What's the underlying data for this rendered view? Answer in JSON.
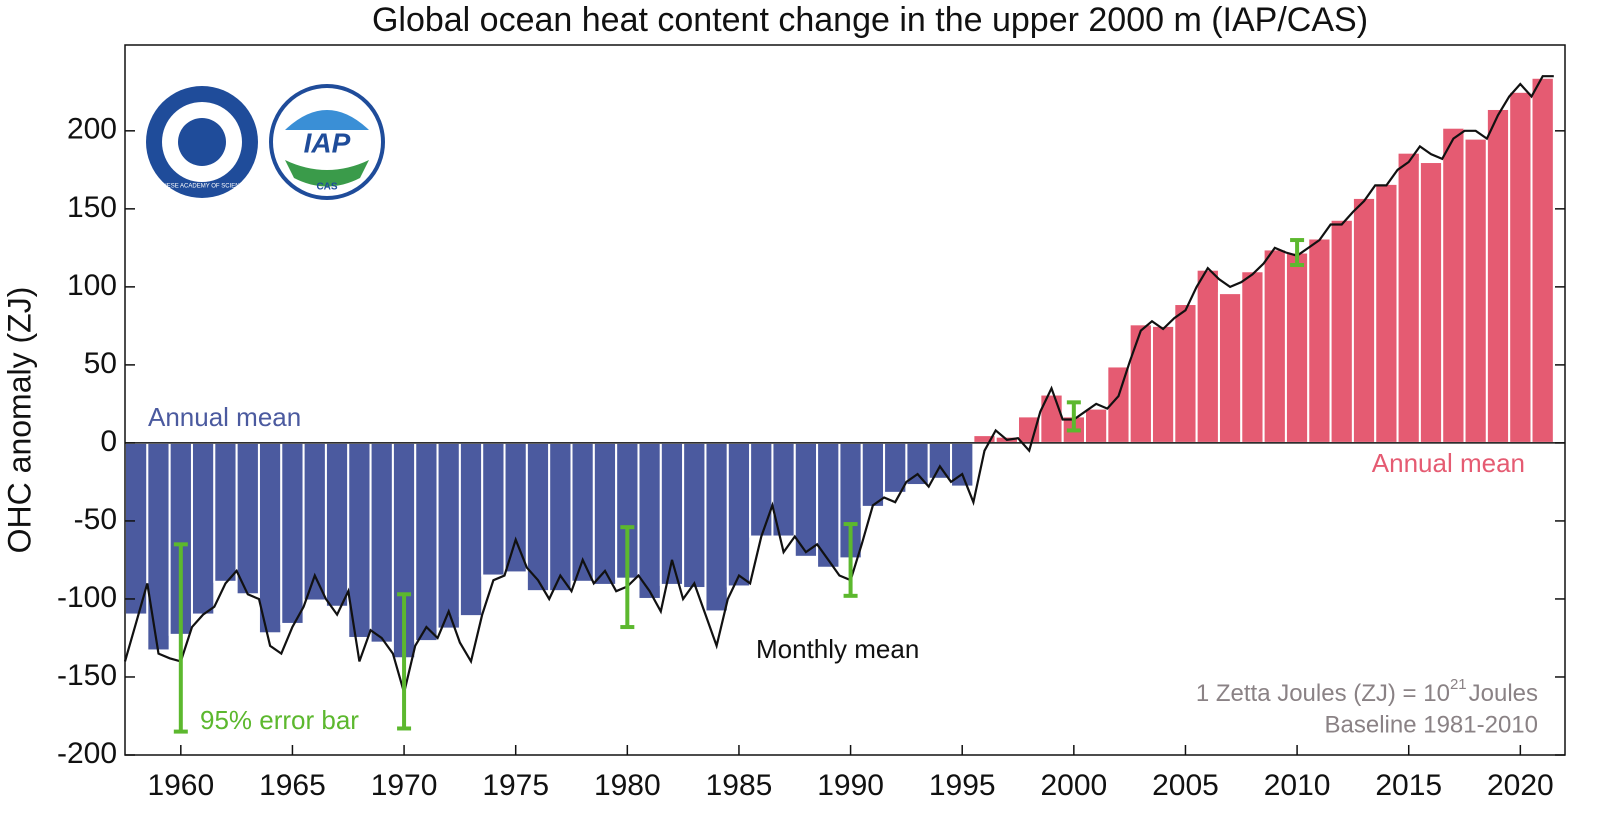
{
  "chart_data": {
    "type": "bar",
    "title": "Global ocean heat content change in the upper 2000 m (IAP/CAS)",
    "y_label": "OHC anomaly (ZJ)",
    "xlim": [
      1957.5,
      2022
    ],
    "ylim": [
      -200,
      255
    ],
    "xticks": [
      1960,
      1965,
      1970,
      1975,
      1980,
      1985,
      1990,
      1995,
      2000,
      2005,
      2010,
      2015,
      2020
    ],
    "yticks": [
      -200,
      -150,
      -100,
      -50,
      0,
      50,
      100,
      150,
      200
    ],
    "grid": false,
    "annual": {
      "name": "Annual mean",
      "negative_color": "#4b5a9f",
      "positive_color": "#e55b72",
      "x": [
        1958,
        1959,
        1960,
        1961,
        1962,
        1963,
        1964,
        1965,
        1966,
        1967,
        1968,
        1969,
        1970,
        1971,
        1972,
        1973,
        1974,
        1975,
        1976,
        1977,
        1978,
        1979,
        1980,
        1981,
        1982,
        1983,
        1984,
        1985,
        1986,
        1987,
        1988,
        1989,
        1990,
        1991,
        1992,
        1993,
        1994,
        1995,
        1996,
        1997,
        1998,
        1999,
        2000,
        2001,
        2002,
        2003,
        2004,
        2005,
        2006,
        2007,
        2008,
        2009,
        2010,
        2011,
        2012,
        2013,
        2014,
        2015,
        2016,
        2017,
        2018,
        2019,
        2020,
        2021
      ],
      "values": [
        -110,
        -133,
        -123,
        -110,
        -89,
        -97,
        -122,
        -116,
        -101,
        -105,
        -125,
        -128,
        -138,
        -127,
        -119,
        -111,
        -85,
        -83,
        -95,
        -95,
        -89,
        -91,
        -87,
        -100,
        -91,
        -93,
        -108,
        -92,
        -60,
        -60,
        -73,
        -80,
        -74,
        -41,
        -32,
        -27,
        -23,
        -28,
        5,
        4,
        17,
        31,
        17,
        22,
        49,
        76,
        75,
        89,
        111,
        96,
        110,
        124,
        122,
        131,
        143,
        157,
        166,
        186,
        180,
        202,
        195,
        214,
        225,
        234
      ]
    },
    "monthly": {
      "name": "Monthly mean",
      "color": "#111111",
      "x": [
        1957.5,
        1958,
        1958.5,
        1959,
        1959.5,
        1960,
        1960.5,
        1961,
        1961.5,
        1962,
        1962.5,
        1963,
        1963.5,
        1964,
        1964.5,
        1965,
        1965.5,
        1966,
        1966.5,
        1967,
        1967.5,
        1968,
        1968.5,
        1969,
        1969.5,
        1970,
        1970.5,
        1971,
        1971.5,
        1972,
        1972.5,
        1973,
        1973.5,
        1974,
        1974.5,
        1975,
        1975.5,
        1976,
        1976.5,
        1977,
        1977.5,
        1978,
        1978.5,
        1979,
        1979.5,
        1980,
        1980.5,
        1981,
        1981.5,
        1982,
        1982.5,
        1983,
        1983.5,
        1984,
        1984.5,
        1985,
        1985.5,
        1986,
        1986.5,
        1987,
        1987.5,
        1988,
        1988.5,
        1989,
        1989.5,
        1990,
        1990.5,
        1991,
        1991.5,
        1992,
        1992.5,
        1993,
        1993.5,
        1994,
        1994.5,
        1995,
        1995.5,
        1996,
        1996.5,
        1997,
        1997.5,
        1998,
        1998.5,
        1999,
        1999.5,
        2000,
        2000.5,
        2001,
        2001.5,
        2002,
        2002.5,
        2003,
        2003.5,
        2004,
        2004.5,
        2005,
        2005.5,
        2006,
        2006.5,
        2007,
        2007.5,
        2008,
        2008.5,
        2009,
        2009.5,
        2010,
        2010.5,
        2011,
        2011.5,
        2012,
        2012.5,
        2013,
        2013.5,
        2014,
        2014.5,
        2015,
        2015.5,
        2016,
        2016.5,
        2017,
        2017.5,
        2018,
        2018.5,
        2019,
        2019.5,
        2020,
        2020.5,
        2021,
        2021.5
      ],
      "values": [
        -140,
        -115,
        -90,
        -135,
        -138,
        -140,
        -118,
        -110,
        -105,
        -90,
        -82,
        -97,
        -100,
        -130,
        -135,
        -118,
        -105,
        -85,
        -100,
        -110,
        -95,
        -140,
        -120,
        -125,
        -135,
        -160,
        -130,
        -118,
        -125,
        -108,
        -128,
        -140,
        -110,
        -88,
        -85,
        -62,
        -80,
        -88,
        -100,
        -85,
        -95,
        -75,
        -90,
        -82,
        -95,
        -92,
        -85,
        -95,
        -108,
        -75,
        -100,
        -90,
        -110,
        -130,
        -100,
        -85,
        -90,
        -60,
        -40,
        -70,
        -60,
        -70,
        -65,
        -75,
        -85,
        -88,
        -65,
        -40,
        -35,
        -38,
        -25,
        -20,
        -28,
        -15,
        -25,
        -20,
        -38,
        -5,
        8,
        2,
        3,
        -5,
        20,
        35,
        15,
        15,
        20,
        25,
        22,
        30,
        52,
        72,
        78,
        73,
        80,
        85,
        100,
        112,
        105,
        100,
        103,
        108,
        115,
        125,
        122,
        120,
        125,
        130,
        140,
        140,
        148,
        155,
        165,
        165,
        175,
        180,
        190,
        185,
        182,
        195,
        200,
        200,
        195,
        210,
        222,
        230,
        222,
        235,
        235
      ]
    },
    "error_bars": {
      "name": "95% error bar",
      "color": "#5cb82e",
      "x": [
        1960,
        1970,
        1980,
        1990,
        2000,
        2010
      ],
      "values": [
        -125,
        -140,
        -86,
        -75,
        17,
        122
      ],
      "errors": [
        60,
        43,
        32,
        23,
        9,
        8
      ]
    },
    "note": {
      "text": "1 Zetta Joules (ZJ) = 10",
      "superscript": "21",
      "unit": "Joules"
    },
    "baseline": "Baseline 1981-2010",
    "logos": {
      "left": "CHINESE ACADEMY OF SCIENCES",
      "right": "IAP",
      "right_sub": "CAS"
    }
  }
}
